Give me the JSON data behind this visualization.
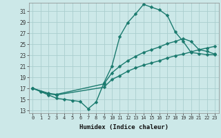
{
  "xlabel": "Humidex (Indice chaleur)",
  "xlim": [
    -0.5,
    23.5
  ],
  "ylim": [
    12.5,
    32.5
  ],
  "xticks": [
    0,
    1,
    2,
    3,
    4,
    5,
    6,
    7,
    8,
    9,
    10,
    11,
    12,
    13,
    14,
    15,
    16,
    17,
    18,
    19,
    20,
    21,
    22,
    23
  ],
  "yticks": [
    13,
    15,
    17,
    19,
    21,
    23,
    25,
    27,
    29,
    31
  ],
  "bg_color": "#cce8e8",
  "line_color": "#1a7a6e",
  "grid_color": "#aacece",
  "line1_x": [
    0,
    1,
    2,
    3,
    4,
    5,
    6,
    7,
    8,
    9,
    10,
    11,
    12,
    13,
    14,
    15,
    16,
    17,
    18,
    19,
    20,
    21,
    22,
    23
  ],
  "line1_y": [
    17.0,
    16.4,
    15.8,
    15.2,
    15.0,
    14.8,
    14.6,
    13.3,
    14.5,
    18.0,
    21.0,
    26.4,
    28.9,
    30.5,
    32.2,
    31.7,
    31.2,
    30.2,
    27.2,
    25.5,
    23.5,
    23.3,
    23.1,
    23.1
  ],
  "line2_x": [
    0,
    2,
    3,
    9,
    10,
    11,
    12,
    13,
    14,
    15,
    16,
    17,
    18,
    19,
    20,
    21,
    22,
    23
  ],
  "line2_y": [
    17.0,
    16.0,
    15.8,
    17.2,
    18.6,
    19.3,
    20.1,
    20.7,
    21.2,
    21.6,
    22.0,
    22.5,
    22.9,
    23.2,
    23.6,
    24.0,
    24.3,
    24.6
  ],
  "line3_x": [
    0,
    2,
    3,
    9,
    10,
    11,
    12,
    13,
    14,
    15,
    16,
    17,
    18,
    19,
    20,
    21,
    22,
    23
  ],
  "line3_y": [
    17.0,
    16.1,
    15.9,
    17.8,
    19.8,
    21.0,
    22.0,
    22.8,
    23.5,
    24.0,
    24.5,
    25.1,
    25.5,
    26.0,
    25.5,
    24.0,
    23.7,
    23.2
  ],
  "markersize": 2.5,
  "linewidth": 1.0
}
